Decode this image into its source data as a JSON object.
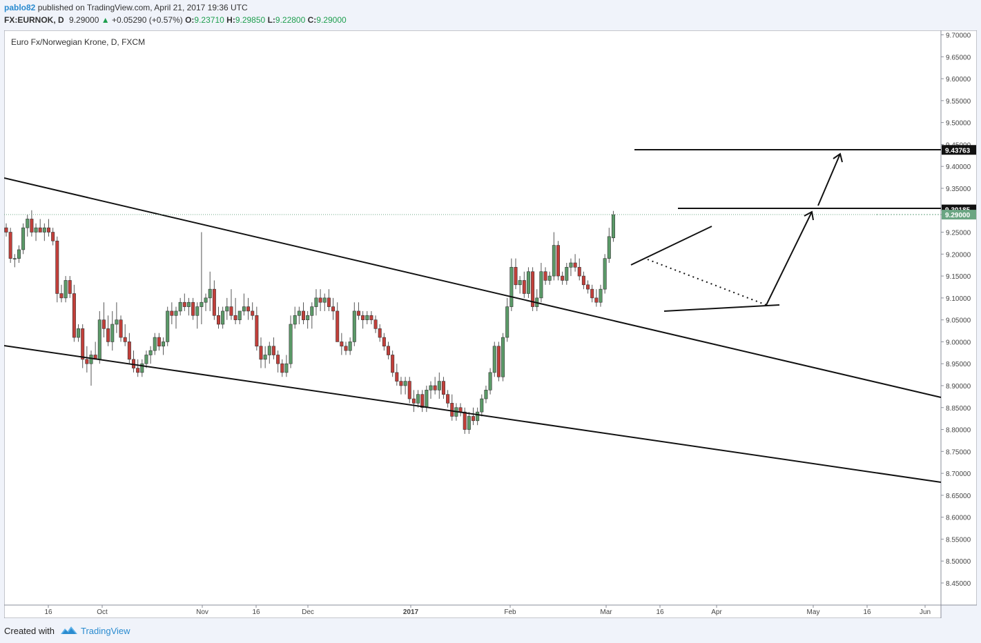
{
  "header": {
    "user": "pablo82",
    "published": "published on TradingView.com, April 21, 2017 19:36 UTC",
    "symbol": "FX:EURNOK, D",
    "price": "9.29000",
    "change_arrow": "▲",
    "change": "+0.05290 (+0.57%)",
    "open_label": "O:",
    "open": "9.23710",
    "high_label": "H:",
    "high": "9.29850",
    "low_label": "L:",
    "low": "9.22800",
    "close_label": "C:",
    "close": "9.29000"
  },
  "footer": {
    "created": "Created with",
    "brand": "TradingView"
  },
  "colors": {
    "up": "#5b9a68",
    "down": "#c23f3a",
    "accent": "#2a8bcf",
    "last_price": "#6ba583"
  },
  "chart_data": {
    "type": "candlestick",
    "title": "Euro Fx/Norwegian Krone, D, FXCM",
    "ylim": [
      8.38,
      9.71
    ],
    "y_ticks": [
      "9.70000",
      "9.65000",
      "9.60000",
      "9.55000",
      "9.50000",
      "9.45000",
      "9.40000",
      "9.35000",
      "9.30000",
      "9.25000",
      "9.20000",
      "9.15000",
      "9.10000",
      "9.05000",
      "9.00000",
      "8.95000",
      "8.90000",
      "8.85000",
      "8.80000",
      "8.75000",
      "8.70000",
      "8.65000",
      "8.60000",
      "8.55000",
      "8.50000",
      "8.45000"
    ],
    "x_ticks": [
      "16",
      "Oct",
      "Nov",
      "16",
      "Dec",
      "2017",
      "Feb",
      "Mar",
      "16",
      "Apr",
      "May",
      "16",
      "Jun"
    ],
    "bold_x_ticks": [
      "2017"
    ],
    "price_tags": [
      {
        "value": "9.43763",
        "style": "dark"
      },
      {
        "value": "9.30185",
        "style": "dark"
      },
      {
        "value": "9.29000",
        "style": "last"
      }
    ],
    "last_price": 9.29,
    "candles": [
      [
        9.26,
        9.27,
        9.24,
        9.25
      ],
      [
        9.25,
        9.26,
        9.18,
        9.19
      ],
      [
        9.19,
        9.2,
        9.17,
        9.19
      ],
      [
        9.19,
        9.22,
        9.18,
        9.21
      ],
      [
        9.21,
        9.27,
        9.2,
        9.26
      ],
      [
        9.26,
        9.29,
        9.24,
        9.28
      ],
      [
        9.28,
        9.3,
        9.24,
        9.25
      ],
      [
        9.25,
        9.27,
        9.23,
        9.26
      ],
      [
        9.26,
        9.28,
        9.25,
        9.25
      ],
      [
        9.25,
        9.27,
        9.23,
        9.26
      ],
      [
        9.26,
        9.28,
        9.24,
        9.25
      ],
      [
        9.25,
        9.26,
        9.22,
        9.23
      ],
      [
        9.23,
        9.24,
        9.09,
        9.11
      ],
      [
        9.11,
        9.13,
        9.09,
        9.1
      ],
      [
        9.1,
        9.15,
        9.09,
        9.14
      ],
      [
        9.14,
        9.15,
        9.1,
        9.11
      ],
      [
        9.11,
        9.13,
        9.0,
        9.01
      ],
      [
        9.01,
        9.04,
        9.0,
        9.03
      ],
      [
        9.03,
        9.04,
        8.94,
        8.96
      ],
      [
        8.96,
        8.99,
        8.93,
        8.95
      ],
      [
        8.95,
        8.98,
        8.9,
        8.97
      ],
      [
        8.97,
        9.0,
        8.96,
        8.96
      ],
      [
        8.96,
        9.07,
        8.95,
        9.05
      ],
      [
        9.05,
        9.09,
        9.01,
        9.03
      ],
      [
        9.03,
        9.06,
        8.99,
        9.0
      ],
      [
        9.0,
        9.07,
        8.98,
        9.04
      ],
      [
        9.04,
        9.09,
        9.02,
        9.05
      ],
      [
        9.05,
        9.06,
        9.0,
        9.01
      ],
      [
        9.01,
        9.04,
        8.99,
        9.0
      ],
      [
        9.0,
        9.02,
        8.95,
        8.96
      ],
      [
        8.96,
        8.98,
        8.93,
        8.94
      ],
      [
        8.94,
        8.96,
        8.92,
        8.93
      ],
      [
        8.93,
        8.96,
        8.92,
        8.95
      ],
      [
        8.95,
        8.98,
        8.94,
        8.97
      ],
      [
        8.97,
        8.99,
        8.95,
        8.98
      ],
      [
        8.98,
        9.02,
        8.97,
        9.01
      ],
      [
        9.01,
        9.02,
        8.98,
        8.99
      ],
      [
        8.99,
        9.01,
        8.97,
        9.0
      ],
      [
        9.0,
        9.08,
        8.99,
        9.07
      ],
      [
        9.07,
        9.09,
        9.04,
        9.06
      ],
      [
        9.06,
        9.08,
        9.03,
        9.07
      ],
      [
        9.07,
        9.1,
        9.06,
        9.09
      ],
      [
        9.09,
        9.11,
        9.07,
        9.08
      ],
      [
        9.08,
        9.1,
        9.06,
        9.09
      ],
      [
        9.09,
        9.1,
        9.05,
        9.06
      ],
      [
        9.06,
        9.09,
        9.03,
        9.08
      ],
      [
        9.08,
        9.25,
        9.04,
        9.09
      ],
      [
        9.09,
        9.11,
        9.07,
        9.1
      ],
      [
        9.1,
        9.16,
        9.07,
        9.12
      ],
      [
        9.12,
        9.14,
        9.05,
        9.06
      ],
      [
        9.06,
        9.08,
        9.03,
        9.04
      ],
      [
        9.04,
        9.08,
        9.03,
        9.07
      ],
      [
        9.07,
        9.1,
        9.05,
        9.08
      ],
      [
        9.08,
        9.12,
        9.05,
        9.06
      ],
      [
        9.06,
        9.1,
        9.04,
        9.05
      ],
      [
        9.05,
        9.07,
        9.04,
        9.07
      ],
      [
        9.07,
        9.11,
        9.06,
        9.08
      ],
      [
        9.08,
        9.1,
        9.05,
        9.07
      ],
      [
        9.07,
        9.09,
        9.05,
        9.06
      ],
      [
        9.06,
        9.08,
        8.98,
        8.99
      ],
      [
        8.99,
        9.01,
        8.94,
        8.96
      ],
      [
        8.96,
        8.99,
        8.94,
        8.97
      ],
      [
        8.97,
        9.0,
        8.95,
        8.99
      ],
      [
        8.99,
        9.01,
        8.96,
        8.97
      ],
      [
        8.97,
        8.98,
        8.93,
        8.95
      ],
      [
        8.95,
        8.96,
        8.92,
        8.93
      ],
      [
        8.93,
        8.97,
        8.92,
        8.95
      ],
      [
        8.95,
        9.06,
        8.94,
        9.04
      ],
      [
        9.04,
        9.08,
        9.03,
        9.06
      ],
      [
        9.06,
        9.08,
        9.04,
        9.07
      ],
      [
        9.07,
        9.09,
        9.04,
        9.05
      ],
      [
        9.05,
        9.07,
        9.03,
        9.06
      ],
      [
        9.06,
        9.09,
        9.03,
        9.08
      ],
      [
        9.08,
        9.12,
        9.06,
        9.1
      ],
      [
        9.1,
        9.12,
        9.07,
        9.09
      ],
      [
        9.09,
        9.11,
        9.07,
        9.1
      ],
      [
        9.1,
        9.12,
        9.07,
        9.08
      ],
      [
        9.08,
        9.1,
        9.05,
        9.07
      ],
      [
        9.07,
        9.09,
        9.0,
        9.0
      ],
      [
        9.0,
        9.02,
        8.97,
        8.99
      ],
      [
        8.99,
        9.0,
        8.97,
        8.98
      ],
      [
        8.98,
        9.01,
        8.97,
        9.0
      ],
      [
        9.0,
        9.09,
        8.99,
        9.07
      ],
      [
        9.07,
        9.09,
        9.05,
        9.06
      ],
      [
        9.06,
        9.07,
        9.03,
        9.05
      ],
      [
        9.05,
        9.07,
        9.04,
        9.06
      ],
      [
        9.06,
        9.07,
        9.04,
        9.05
      ],
      [
        9.05,
        9.06,
        9.02,
        9.03
      ],
      [
        9.03,
        9.04,
        9.0,
        9.01
      ],
      [
        9.01,
        9.02,
        8.98,
        8.99
      ],
      [
        8.99,
        9.0,
        8.96,
        8.97
      ],
      [
        8.97,
        8.98,
        8.92,
        8.93
      ],
      [
        8.93,
        8.95,
        8.9,
        8.91
      ],
      [
        8.91,
        8.92,
        8.88,
        8.9
      ],
      [
        8.9,
        8.92,
        8.88,
        8.91
      ],
      [
        8.91,
        8.92,
        8.86,
        8.87
      ],
      [
        8.87,
        8.89,
        8.84,
        8.86
      ],
      [
        8.86,
        8.89,
        8.85,
        8.88
      ],
      [
        8.88,
        8.89,
        8.84,
        8.85
      ],
      [
        8.85,
        8.9,
        8.84,
        8.89
      ],
      [
        8.89,
        8.91,
        8.87,
        8.9
      ],
      [
        8.9,
        8.92,
        8.88,
        8.89
      ],
      [
        8.89,
        8.93,
        8.87,
        8.91
      ],
      [
        8.91,
        8.92,
        8.87,
        8.88
      ],
      [
        8.88,
        8.89,
        8.85,
        8.86
      ],
      [
        8.86,
        8.88,
        8.82,
        8.83
      ],
      [
        8.83,
        8.86,
        8.82,
        8.85
      ],
      [
        8.85,
        8.86,
        8.83,
        8.84
      ],
      [
        8.84,
        8.85,
        8.79,
        8.8
      ],
      [
        8.8,
        8.84,
        8.79,
        8.83
      ],
      [
        8.83,
        8.85,
        8.81,
        8.82
      ],
      [
        8.82,
        8.85,
        8.81,
        8.84
      ],
      [
        8.84,
        8.88,
        8.83,
        8.87
      ],
      [
        8.87,
        8.9,
        8.86,
        8.89
      ],
      [
        8.89,
        8.94,
        8.88,
        8.93
      ],
      [
        8.93,
        9.0,
        8.92,
        8.99
      ],
      [
        8.99,
        9.0,
        8.91,
        8.92
      ],
      [
        8.92,
        9.02,
        8.91,
        9.01
      ],
      [
        9.01,
        9.1,
        9.0,
        9.08
      ],
      [
        9.08,
        9.19,
        9.07,
        9.17
      ],
      [
        9.17,
        9.19,
        9.12,
        9.13
      ],
      [
        9.13,
        9.15,
        9.11,
        9.14
      ],
      [
        9.14,
        9.16,
        9.1,
        9.11
      ],
      [
        9.11,
        9.17,
        9.1,
        9.16
      ],
      [
        9.16,
        9.17,
        9.07,
        9.08
      ],
      [
        9.08,
        9.12,
        9.07,
        9.1
      ],
      [
        9.1,
        9.18,
        9.09,
        9.16
      ],
      [
        9.16,
        9.17,
        9.13,
        9.14
      ],
      [
        9.14,
        9.16,
        9.13,
        9.15
      ],
      [
        9.15,
        9.25,
        9.14,
        9.22
      ],
      [
        9.22,
        9.23,
        9.14,
        9.15
      ],
      [
        9.15,
        9.16,
        9.13,
        9.14
      ],
      [
        9.14,
        9.18,
        9.13,
        9.17
      ],
      [
        9.17,
        9.19,
        9.15,
        9.18
      ],
      [
        9.18,
        9.2,
        9.16,
        9.17
      ],
      [
        9.17,
        9.19,
        9.14,
        9.15
      ],
      [
        9.15,
        9.16,
        9.12,
        9.13
      ],
      [
        9.13,
        9.14,
        9.11,
        9.12
      ],
      [
        9.12,
        9.13,
        9.09,
        9.1
      ],
      [
        9.1,
        9.12,
        9.08,
        9.09
      ],
      [
        9.09,
        9.13,
        9.08,
        9.12
      ],
      [
        9.12,
        9.2,
        9.11,
        9.19
      ],
      [
        9.19,
        9.26,
        9.18,
        9.24
      ],
      [
        9.237,
        9.2985,
        9.228,
        9.29
      ]
    ]
  }
}
